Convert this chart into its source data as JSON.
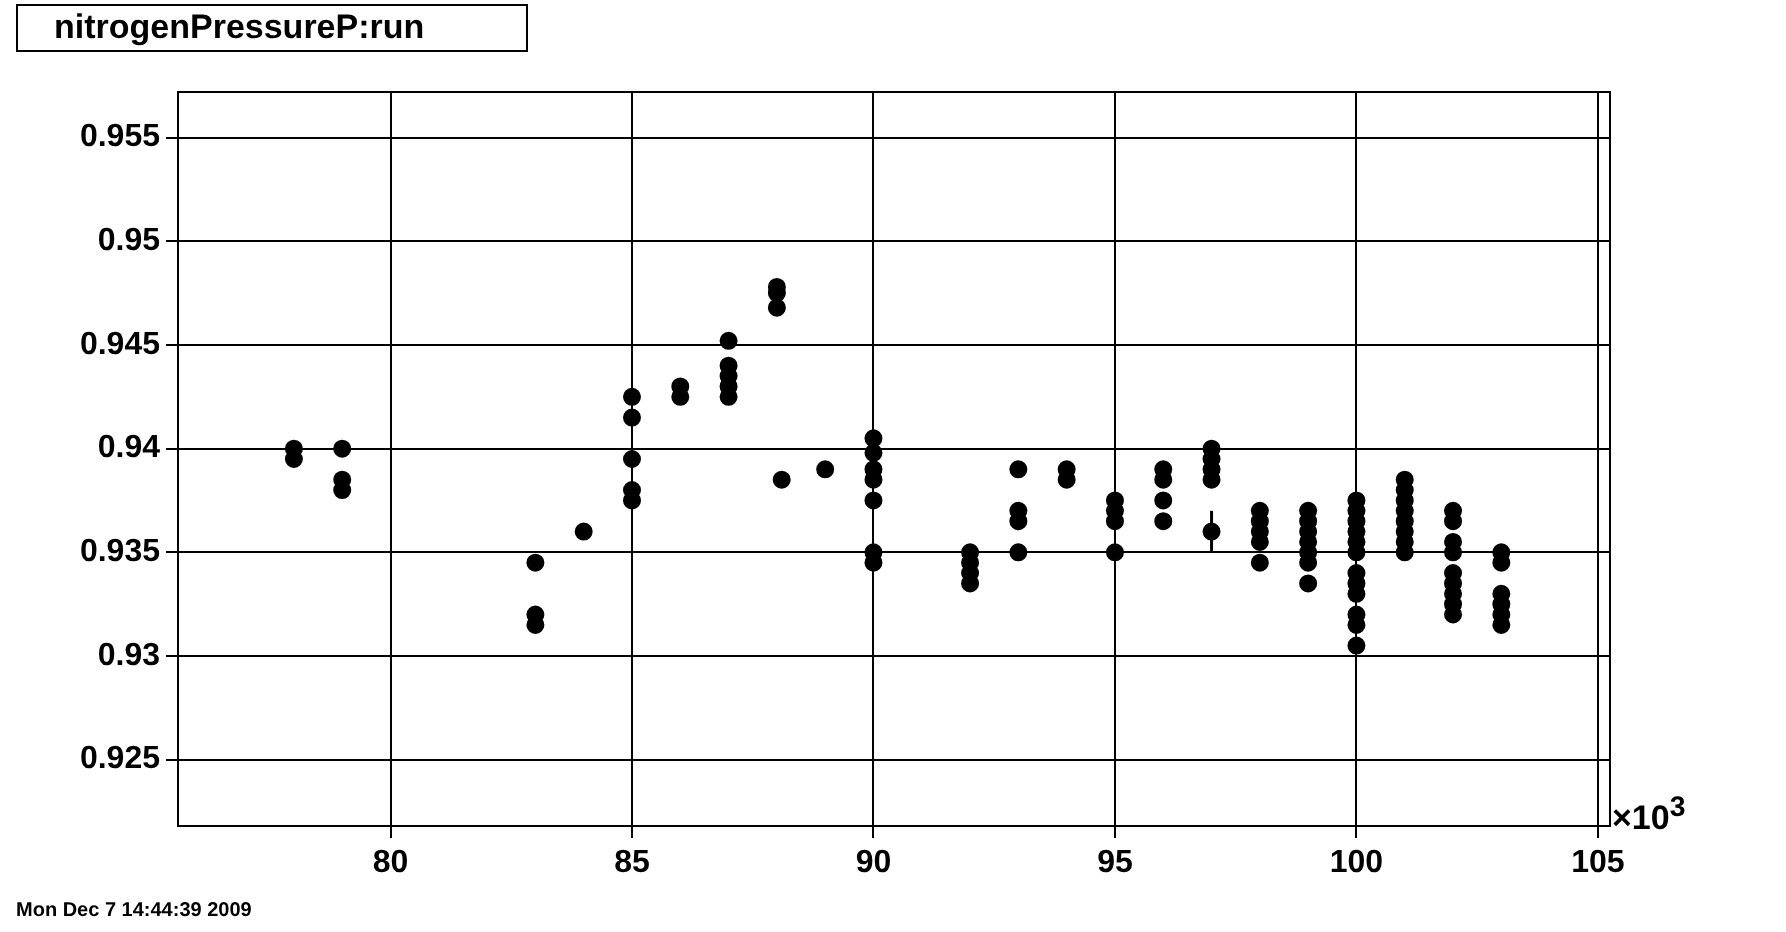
{
  "chart_data": {
    "type": "scatter",
    "title": "nitrogenPressureP:run",
    "annotations": [
      "×10$^{3}$",
      "Mon Dec  7 14:44:39 2009"
    ],
    "x": [
      78,
      78,
      79,
      79,
      79,
      83,
      83,
      83,
      84,
      85,
      85,
      85,
      85,
      85,
      86,
      86,
      87,
      87,
      87,
      87,
      87,
      88,
      88,
      88,
      88.1,
      89,
      90,
      90,
      90,
      90,
      90,
      90,
      90,
      92,
      92,
      92,
      92,
      93,
      93,
      93,
      93,
      94,
      94,
      95,
      95,
      95,
      95,
      96,
      96,
      96,
      96,
      97,
      97,
      97,
      97,
      97,
      98,
      98,
      98,
      98,
      98,
      99,
      99,
      99,
      99,
      99,
      99,
      99,
      100,
      100,
      100,
      100,
      100,
      100,
      100,
      100,
      100,
      100,
      100,
      100,
      101,
      101,
      101,
      101,
      101,
      101,
      101,
      101,
      102,
      102,
      102,
      102,
      102,
      102,
      102,
      102,
      102,
      103,
      103,
      103,
      103,
      103,
      103
    ],
    "values": [
      0.94,
      0.9395,
      0.94,
      0.9385,
      0.938,
      0.9345,
      0.932,
      0.9315,
      0.936,
      0.9425,
      0.9415,
      0.9395,
      0.938,
      0.9375,
      0.943,
      0.9425,
      0.9452,
      0.944,
      0.9435,
      0.943,
      0.9425,
      0.9478,
      0.9475,
      0.9468,
      0.9385,
      0.939,
      0.9405,
      0.9398,
      0.939,
      0.9385,
      0.9375,
      0.935,
      0.9345,
      0.935,
      0.9345,
      0.934,
      0.9335,
      0.939,
      0.937,
      0.9365,
      0.935,
      0.939,
      0.9385,
      0.9375,
      0.937,
      0.9365,
      0.935,
      0.939,
      0.9385,
      0.9375,
      0.9365,
      0.94,
      0.9395,
      0.939,
      0.9385,
      0.936,
      0.937,
      0.9365,
      0.936,
      0.9355,
      0.9345,
      0.937,
      0.9365,
      0.936,
      0.9355,
      0.935,
      0.9345,
      0.9335,
      0.9375,
      0.937,
      0.9365,
      0.936,
      0.9355,
      0.935,
      0.934,
      0.9335,
      0.933,
      0.932,
      0.9315,
      0.9305,
      0.9385,
      0.938,
      0.9375,
      0.937,
      0.9365,
      0.936,
      0.9355,
      0.935,
      0.937,
      0.9365,
      0.9355,
      0.935,
      0.934,
      0.9335,
      0.933,
      0.9325,
      0.932,
      0.935,
      0.9345,
      0.933,
      0.9325,
      0.932,
      0.9315
    ],
    "errors": [
      null,
      null,
      null,
      null,
      null,
      null,
      null,
      null,
      null,
      null,
      null,
      null,
      null,
      null,
      null,
      null,
      null,
      null,
      null,
      null,
      null,
      null,
      null,
      null,
      null,
      null,
      null,
      null,
      null,
      null,
      null,
      null,
      null,
      null,
      null,
      null,
      null,
      null,
      null,
      null,
      null,
      null,
      null,
      null,
      null,
      null,
      null,
      null,
      null,
      null,
      null,
      null,
      null,
      null,
      null,
      0.001,
      null,
      null,
      null,
      null,
      null,
      null,
      null,
      null,
      null,
      null,
      null,
      null,
      null,
      null,
      null,
      null,
      null,
      null,
      null,
      null,
      null,
      null,
      null,
      null,
      null,
      null,
      null,
      null,
      null,
      null,
      null,
      null,
      null,
      null,
      null,
      null,
      null,
      null,
      null,
      null,
      null,
      null,
      null,
      null,
      null,
      null,
      null
    ],
    "color": "#000000",
    "marker": "circle",
    "grid": true,
    "legend": false,
    "xlim": [
      75.6,
      105.25
    ],
    "xticks": [
      80,
      85,
      90,
      95,
      100,
      105
    ],
    "ylim": [
      0.9218,
      0.9572
    ],
    "yticks": [
      0.925,
      0.93,
      0.935,
      0.94,
      0.945,
      0.95,
      0.955
    ]
  }
}
